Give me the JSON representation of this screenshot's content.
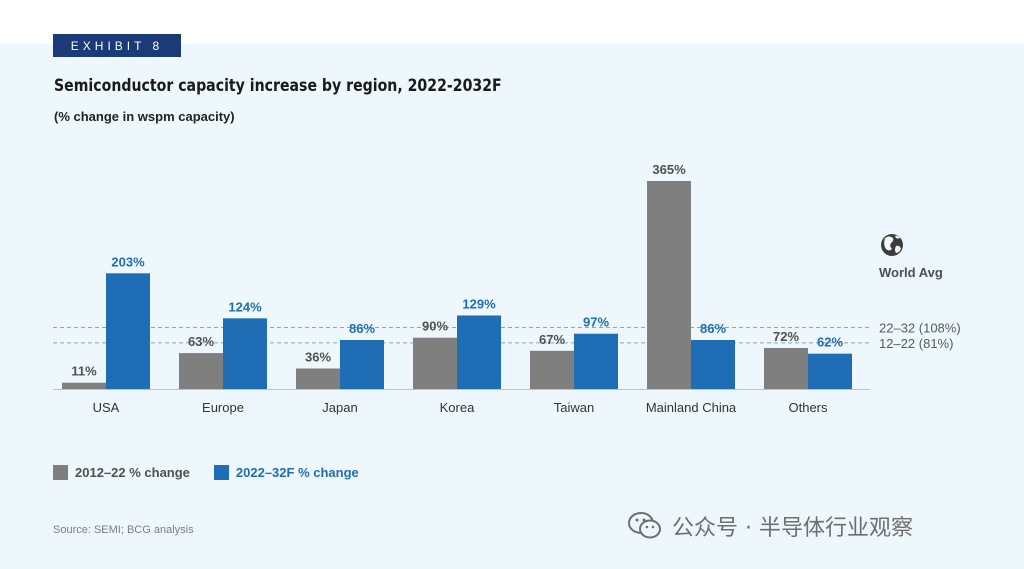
{
  "exhibit_label": "EXHIBIT 8",
  "title": "Semiconductor capacity increase by region, 2022-2032F",
  "subtitle": "(% change in wspm capacity)",
  "source": "Source: SEMI; BCG analysis",
  "watermark": "公众号 · 半导体行业观察",
  "colors": {
    "series1": "#7f7f7f",
    "series2": "#1f6db5",
    "series1_label": "#505050",
    "series2_label": "#1f6db5",
    "refline": "#8fa3b5",
    "header_bar": "#1b3a78",
    "panel_bg": "#eef8fc"
  },
  "world_avg_label": "World Avg",
  "world_avg_icon": "globe-icon",
  "chart_data": {
    "type": "bar",
    "title": "Semiconductor capacity increase by region, 2022-2032F",
    "subtitle": "(% change in wspm capacity)",
    "categories": [
      "USA",
      "Europe",
      "Japan",
      "Korea",
      "Taiwan",
      "Mainland China",
      "Others"
    ],
    "series": [
      {
        "name": "2012–22 % change",
        "values": [
          11,
          63,
          36,
          90,
          67,
          365,
          72
        ],
        "labels": [
          "11%",
          "63%",
          "36%",
          "90%",
          "67%",
          "365%",
          "72%"
        ]
      },
      {
        "name": "2022–32F % change",
        "values": [
          203,
          124,
          86,
          129,
          97,
          86,
          62
        ],
        "labels": [
          "203%",
          "124%",
          "86%",
          "129%",
          "97%",
          "86%",
          "62%"
        ]
      }
    ],
    "reference_lines": [
      {
        "label": "22–32 (108%)",
        "value": 108,
        "series": 1
      },
      {
        "label": "12–22 (81%)",
        "value": 81,
        "series": 0
      }
    ],
    "ylim": [
      0,
      380
    ],
    "grid": false,
    "legend_position": "bottom-left",
    "xlabel": "",
    "ylabel": ""
  }
}
